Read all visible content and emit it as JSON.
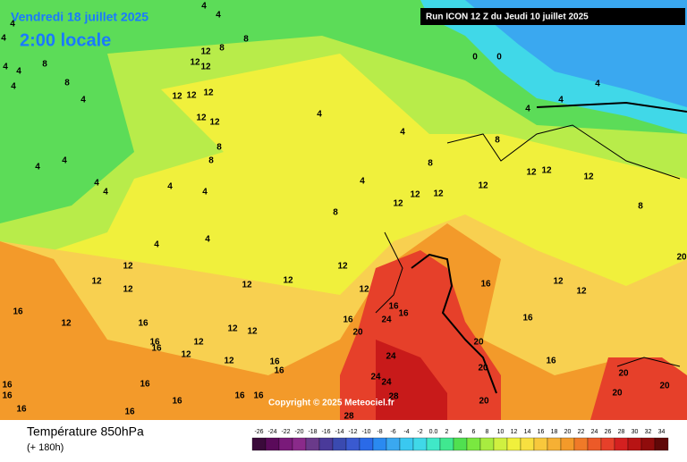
{
  "header": {
    "date": "Vendredi 18 juillet 2025",
    "time": "2:00 locale",
    "run": "Run ICON 12 Z du Jeudi 10 juillet 2025"
  },
  "copyright": "Copyright © 2025 Meteociel.fr",
  "legend": {
    "title": "Température 850hPa",
    "subtitle": "(+ 180h)",
    "ticks": [
      -26,
      -24,
      -22,
      -20,
      -18,
      -16,
      -14,
      -12,
      -10,
      -8,
      -6,
      -4,
      -2,
      {
        "value": 0,
        "label": "0.0"
      },
      2,
      4,
      6,
      8,
      10,
      12,
      14,
      16,
      18,
      20,
      22,
      24,
      26,
      28,
      30,
      32,
      34
    ],
    "colors": [
      "#3a0a3a",
      "#5a0a5a",
      "#7a1a7a",
      "#8a2a8a",
      "#6a3a8a",
      "#4a3a9a",
      "#3a4ab0",
      "#3a5ad0",
      "#2a6ae8",
      "#2a8af0",
      "#3aa8f0",
      "#3ac8f0",
      "#40d8e8",
      "#40e8c8",
      "#40e890",
      "#50e050",
      "#7ae840",
      "#a8ec40",
      "#d0f040",
      "#f0f03c",
      "#f8e040",
      "#f8c83c",
      "#f6b034",
      "#f39a2a",
      "#f07a28",
      "#ec5a28",
      "#e6402a",
      "#d42020",
      "#b81414",
      "#900c0c",
      "#600808"
    ]
  },
  "contour_labels": [
    4,
    4,
    4,
    4,
    4,
    4,
    4,
    4,
    4,
    4,
    4,
    4,
    4,
    4,
    4,
    4,
    4,
    4,
    4,
    4,
    4,
    4,
    0,
    0,
    8,
    8,
    8,
    8,
    8,
    8,
    8,
    8,
    8,
    8,
    12,
    12,
    12,
    12,
    12,
    12,
    12,
    12,
    12,
    12,
    12,
    12,
    12,
    12,
    12,
    12,
    12,
    12,
    12,
    12,
    12,
    12,
    12,
    12,
    12,
    12,
    12,
    12,
    12,
    12,
    16,
    16,
    16,
    16,
    16,
    16,
    16,
    16,
    16,
    16,
    16,
    16,
    16,
    16,
    16,
    16,
    16,
    16,
    16,
    16,
    20,
    20,
    20,
    20,
    20,
    20,
    20,
    20,
    24,
    24,
    24,
    24,
    28,
    28
  ]
}
